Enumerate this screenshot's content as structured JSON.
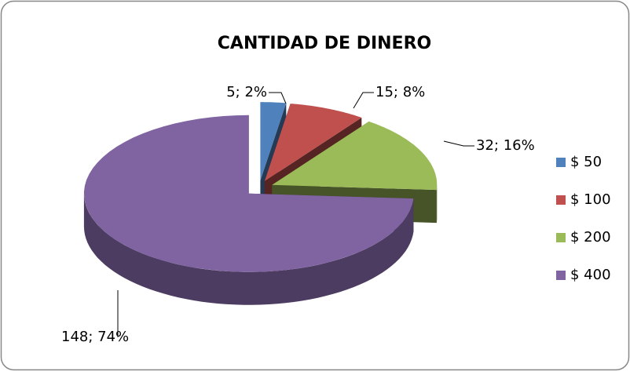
{
  "chart_data": {
    "type": "pie3d",
    "title": "CANTIDAD DE DINERO",
    "categories": [
      "$ 50",
      "$ 100",
      "$ 200",
      "$ 400"
    ],
    "values": [
      5,
      15,
      32,
      148
    ],
    "value_labels": [
      "5; 2%",
      "15; 8%",
      "32; 16%",
      "148; 74%"
    ],
    "colors": [
      "#4f81bd",
      "#c0504d",
      "#9bbb59",
      "#8064a2"
    ],
    "legend": "right"
  }
}
